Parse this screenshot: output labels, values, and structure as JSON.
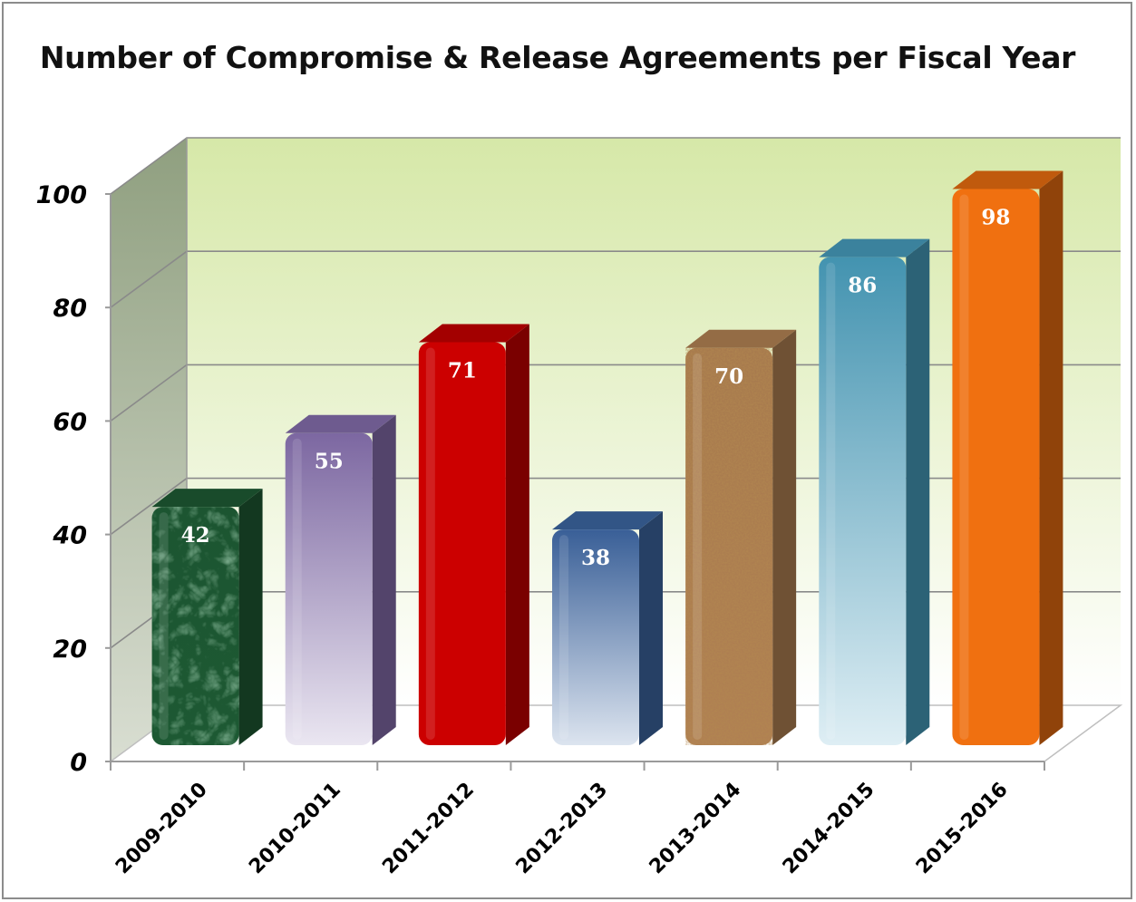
{
  "chart_data": {
    "type": "bar",
    "title": "Number of Compromise & Release Agreements per Fiscal Year",
    "categories": [
      "2009-2010",
      "2010-2011",
      "2011-2012",
      "2012-2013",
      "2013-2014",
      "2014-2015",
      "2015-2016"
    ],
    "values": [
      42,
      55,
      71,
      38,
      70,
      86,
      98
    ],
    "data_labels": [
      "42",
      "55",
      "71",
      "38",
      "70",
      "86",
      "98"
    ],
    "ylim": [
      0,
      100
    ],
    "yticks": [
      "0",
      "20",
      "40",
      "60",
      "80",
      "100"
    ],
    "grid": true,
    "legend": "none",
    "style": "3d",
    "bar_colors": [
      "#1f5e36",
      "#8a72b3",
      "#cc0000",
      "#3f6aa8",
      "#b98756",
      "#4aa3c4",
      "#f07010"
    ],
    "background_colors": {
      "top": "#d6e8a8",
      "bottom": "#ffffff",
      "side_wall": "#a9b79a",
      "floor": "#ffffff"
    }
  }
}
